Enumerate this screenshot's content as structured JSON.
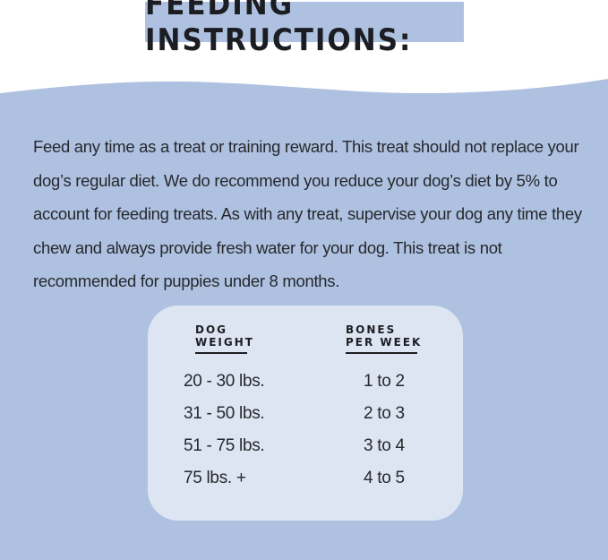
{
  "title": "FEEDING INSTRUCTIONS:",
  "paragraph": "Feed any time as a treat or training reward. This treat should not replace your dog’s regular diet. We do recommend you reduce your dog’s diet by 5% to account for feeding treats. As with any treat, supervise your dog any time they chew and always provide fresh water for your dog. This treat is not recommended for puppies under 8 months.",
  "table": {
    "headers": {
      "weight_line1": "DOG",
      "weight_line2": "WEIGHT",
      "bones_line1": "BONES",
      "bones_line2": "PER WEEK"
    },
    "rows": [
      {
        "weight": "20 - 30 lbs.",
        "bones": "1 to 2"
      },
      {
        "weight": "31 - 50 lbs.",
        "bones": "2 to 3"
      },
      {
        "weight": "51 - 75 lbs.",
        "bones": "3 to 4"
      },
      {
        "weight": "75 lbs. +",
        "bones": "4 to 5"
      }
    ]
  },
  "colors": {
    "panel": "#aec1e0",
    "card": "#dde5f2",
    "text": "#26282d"
  }
}
